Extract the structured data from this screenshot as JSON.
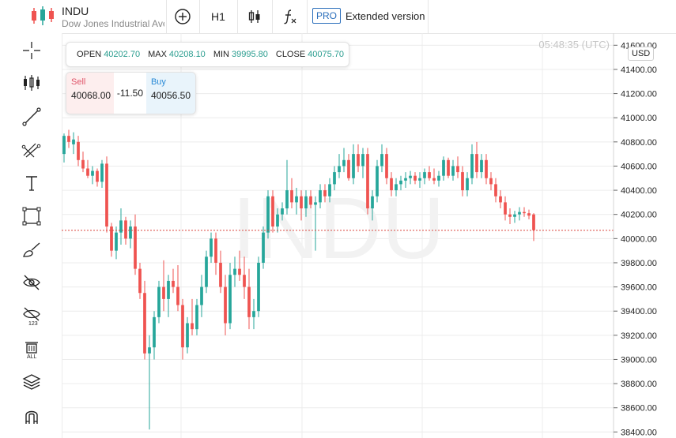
{
  "header": {
    "symbol": "INDU",
    "description": "Dow Jones Industrial Average",
    "timeframe": "H1",
    "pro_badge": "PRO",
    "extended_label": "Extended version"
  },
  "ohlc": {
    "open_label": "OPEN",
    "open": "40202.70",
    "max_label": "MAX",
    "max": "40208.10",
    "min_label": "MIN",
    "min": "39995.80",
    "close_label": "CLOSE",
    "close": "40075.70"
  },
  "trade": {
    "sell_label": "Sell",
    "sell_price": "40068.00",
    "spread": "-11.50",
    "buy_label": "Buy",
    "buy_price": "40056.50"
  },
  "clock": "05:48:35 (UTC)",
  "currency": "USD",
  "watermark": "INDU",
  "colors": {
    "up": "#26a69a",
    "down": "#ef5350",
    "price_line": "#d9453e",
    "grid": "#ececec"
  },
  "sidebar_tools": [
    "crosshair-icon",
    "candles-icon",
    "trend-line-icon",
    "fib-icon",
    "text-icon",
    "rectangle-icon",
    "brush-icon",
    "hide-drawings-icon",
    "hide-indicators-icon",
    "delete-all-icon",
    "layers-icon",
    "magnet-icon"
  ],
  "chart_data": {
    "type": "candlestick",
    "title": "",
    "xlabel": "",
    "ylabel": "",
    "ylim": [
      38350,
      41700
    ],
    "y_ticks": [
      38400,
      38600,
      38800,
      39000,
      39200,
      39400,
      39600,
      39800,
      40000,
      40200,
      40400,
      40600,
      40800,
      41000,
      41200,
      41400,
      41600
    ],
    "y_tick_labels": [
      "38400.00",
      "38600.00",
      "38800.00",
      "39000.00",
      "39200.00",
      "39400.00",
      "39600.00",
      "39800.00",
      "40000.00",
      "40200.00",
      "40400.00",
      "40600.00",
      "40800.00",
      "41000.00",
      "41200.00",
      "41400.00",
      "41600.00"
    ],
    "current_price": 40068.0,
    "candles": [
      {
        "o": 40700,
        "h": 40870,
        "l": 40630,
        "c": 40850
      },
      {
        "o": 40850,
        "h": 40900,
        "l": 40750,
        "c": 40800
      },
      {
        "o": 40780,
        "h": 40880,
        "l": 40700,
        "c": 40820
      },
      {
        "o": 40800,
        "h": 40850,
        "l": 40600,
        "c": 40650
      },
      {
        "o": 40650,
        "h": 40720,
        "l": 40550,
        "c": 40580
      },
      {
        "o": 40580,
        "h": 40650,
        "l": 40500,
        "c": 40520
      },
      {
        "o": 40520,
        "h": 40600,
        "l": 40450,
        "c": 40560
      },
      {
        "o": 40560,
        "h": 40580,
        "l": 40430,
        "c": 40470
      },
      {
        "o": 40470,
        "h": 40650,
        "l": 40420,
        "c": 40620
      },
      {
        "o": 40620,
        "h": 40680,
        "l": 40050,
        "c": 40100
      },
      {
        "o": 40100,
        "h": 40130,
        "l": 39850,
        "c": 39900
      },
      {
        "o": 39900,
        "h": 40100,
        "l": 39830,
        "c": 40050
      },
      {
        "o": 40050,
        "h": 40250,
        "l": 39950,
        "c": 40150
      },
      {
        "o": 40150,
        "h": 40180,
        "l": 39950,
        "c": 40000
      },
      {
        "o": 40000,
        "h": 40150,
        "l": 39920,
        "c": 40100
      },
      {
        "o": 40100,
        "h": 40200,
        "l": 39700,
        "c": 39750
      },
      {
        "o": 39750,
        "h": 39800,
        "l": 39500,
        "c": 39550
      },
      {
        "o": 39550,
        "h": 39650,
        "l": 39000,
        "c": 39050
      },
      {
        "o": 39050,
        "h": 39200,
        "l": 38420,
        "c": 39100
      },
      {
        "o": 39100,
        "h": 39400,
        "l": 39000,
        "c": 39350
      },
      {
        "o": 39350,
        "h": 39650,
        "l": 39300,
        "c": 39600
      },
      {
        "o": 39600,
        "h": 39820,
        "l": 39400,
        "c": 39500
      },
      {
        "o": 39500,
        "h": 39700,
        "l": 39350,
        "c": 39650
      },
      {
        "o": 39650,
        "h": 39750,
        "l": 39550,
        "c": 39600
      },
      {
        "o": 39600,
        "h": 39780,
        "l": 39400,
        "c": 39450
      },
      {
        "o": 39450,
        "h": 39500,
        "l": 39000,
        "c": 39100
      },
      {
        "o": 39100,
        "h": 39350,
        "l": 39050,
        "c": 39300
      },
      {
        "o": 39300,
        "h": 39500,
        "l": 39200,
        "c": 39250
      },
      {
        "o": 39250,
        "h": 39500,
        "l": 39200,
        "c": 39450
      },
      {
        "o": 39450,
        "h": 39700,
        "l": 39350,
        "c": 39600
      },
      {
        "o": 39600,
        "h": 39900,
        "l": 39550,
        "c": 39850
      },
      {
        "o": 39850,
        "h": 40050,
        "l": 39800,
        "c": 40000
      },
      {
        "o": 40000,
        "h": 40050,
        "l": 39700,
        "c": 39800
      },
      {
        "o": 39800,
        "h": 39900,
        "l": 39550,
        "c": 39600
      },
      {
        "o": 39600,
        "h": 39700,
        "l": 39200,
        "c": 39300
      },
      {
        "o": 39300,
        "h": 39800,
        "l": 39250,
        "c": 39700
      },
      {
        "o": 39700,
        "h": 39850,
        "l": 39600,
        "c": 39750
      },
      {
        "o": 39750,
        "h": 39900,
        "l": 39650,
        "c": 39700
      },
      {
        "o": 39700,
        "h": 39850,
        "l": 39500,
        "c": 39600
      },
      {
        "o": 39600,
        "h": 39750,
        "l": 39250,
        "c": 39350
      },
      {
        "o": 39350,
        "h": 39500,
        "l": 39250,
        "c": 39400
      },
      {
        "o": 39400,
        "h": 39850,
        "l": 39350,
        "c": 39800
      },
      {
        "o": 39800,
        "h": 40100,
        "l": 39750,
        "c": 40050
      },
      {
        "o": 40050,
        "h": 40400,
        "l": 40000,
        "c": 40350
      },
      {
        "o": 40350,
        "h": 40400,
        "l": 40050,
        "c": 40100
      },
      {
        "o": 40100,
        "h": 40250,
        "l": 40050,
        "c": 40200
      },
      {
        "o": 40200,
        "h": 40300,
        "l": 40150,
        "c": 40250
      },
      {
        "o": 40250,
        "h": 40650,
        "l": 40200,
        "c": 40400
      },
      {
        "o": 40400,
        "h": 40500,
        "l": 40250,
        "c": 40300
      },
      {
        "o": 40300,
        "h": 40420,
        "l": 40200,
        "c": 40350
      },
      {
        "o": 40350,
        "h": 40400,
        "l": 40150,
        "c": 40250
      },
      {
        "o": 40250,
        "h": 40400,
        "l": 40180,
        "c": 40350
      },
      {
        "o": 40350,
        "h": 40400,
        "l": 40250,
        "c": 40280
      },
      {
        "o": 40280,
        "h": 40350,
        "l": 39900,
        "c": 40300
      },
      {
        "o": 40300,
        "h": 40450,
        "l": 40250,
        "c": 40400
      },
      {
        "o": 40400,
        "h": 40450,
        "l": 40300,
        "c": 40350
      },
      {
        "o": 40350,
        "h": 40500,
        "l": 40300,
        "c": 40450
      },
      {
        "o": 40450,
        "h": 40600,
        "l": 40400,
        "c": 40550
      },
      {
        "o": 40550,
        "h": 40700,
        "l": 40500,
        "c": 40600
      },
      {
        "o": 40600,
        "h": 40750,
        "l": 40550,
        "c": 40650
      },
      {
        "o": 40650,
        "h": 40700,
        "l": 40480,
        "c": 40500
      },
      {
        "o": 40500,
        "h": 40780,
        "l": 40450,
        "c": 40700
      },
      {
        "o": 40700,
        "h": 40780,
        "l": 40550,
        "c": 40600
      },
      {
        "o": 40600,
        "h": 40750,
        "l": 40500,
        "c": 40700
      },
      {
        "o": 40700,
        "h": 40750,
        "l": 40200,
        "c": 40250
      },
      {
        "o": 40250,
        "h": 40400,
        "l": 40150,
        "c": 40350
      },
      {
        "o": 40350,
        "h": 40650,
        "l": 40300,
        "c": 40600
      },
      {
        "o": 40600,
        "h": 40780,
        "l": 40550,
        "c": 40700
      },
      {
        "o": 40700,
        "h": 40750,
        "l": 40450,
        "c": 40500
      },
      {
        "o": 40500,
        "h": 40550,
        "l": 40350,
        "c": 40400
      },
      {
        "o": 40400,
        "h": 40500,
        "l": 40350,
        "c": 40450
      },
      {
        "o": 40450,
        "h": 40520,
        "l": 40400,
        "c": 40480
      },
      {
        "o": 40480,
        "h": 40550,
        "l": 40420,
        "c": 40500
      },
      {
        "o": 40500,
        "h": 40560,
        "l": 40450,
        "c": 40520
      },
      {
        "o": 40520,
        "h": 40550,
        "l": 40450,
        "c": 40480
      },
      {
        "o": 40480,
        "h": 40550,
        "l": 40420,
        "c": 40500
      },
      {
        "o": 40500,
        "h": 40580,
        "l": 40450,
        "c": 40550
      },
      {
        "o": 40550,
        "h": 40600,
        "l": 40480,
        "c": 40500
      },
      {
        "o": 40500,
        "h": 40580,
        "l": 40450,
        "c": 40480
      },
      {
        "o": 40480,
        "h": 40560,
        "l": 40430,
        "c": 40520
      },
      {
        "o": 40520,
        "h": 40680,
        "l": 40480,
        "c": 40650
      },
      {
        "o": 40650,
        "h": 40670,
        "l": 40500,
        "c": 40520
      },
      {
        "o": 40520,
        "h": 40650,
        "l": 40480,
        "c": 40600
      },
      {
        "o": 40600,
        "h": 40680,
        "l": 40500,
        "c": 40550
      },
      {
        "o": 40550,
        "h": 40600,
        "l": 40350,
        "c": 40400
      },
      {
        "o": 40400,
        "h": 40550,
        "l": 40350,
        "c": 40500
      },
      {
        "o": 40500,
        "h": 40780,
        "l": 40450,
        "c": 40700
      },
      {
        "o": 40700,
        "h": 40800,
        "l": 40500,
        "c": 40550
      },
      {
        "o": 40550,
        "h": 40700,
        "l": 40500,
        "c": 40650
      },
      {
        "o": 40650,
        "h": 40700,
        "l": 40450,
        "c": 40500
      },
      {
        "o": 40500,
        "h": 40550,
        "l": 40400,
        "c": 40450
      },
      {
        "o": 40450,
        "h": 40500,
        "l": 40300,
        "c": 40350
      },
      {
        "o": 40350,
        "h": 40400,
        "l": 40250,
        "c": 40300
      },
      {
        "o": 40300,
        "h": 40350,
        "l": 40150,
        "c": 40200
      },
      {
        "o": 40200,
        "h": 40250,
        "l": 40120,
        "c": 40180
      },
      {
        "o": 40180,
        "h": 40230,
        "l": 40130,
        "c": 40200
      },
      {
        "o": 40200,
        "h": 40260,
        "l": 40150,
        "c": 40220
      },
      {
        "o": 40220,
        "h": 40260,
        "l": 40180,
        "c": 40210
      },
      {
        "o": 40210,
        "h": 40240,
        "l": 40160,
        "c": 40190
      },
      {
        "o": 40200,
        "h": 40210,
        "l": 39980,
        "c": 40070
      }
    ]
  }
}
